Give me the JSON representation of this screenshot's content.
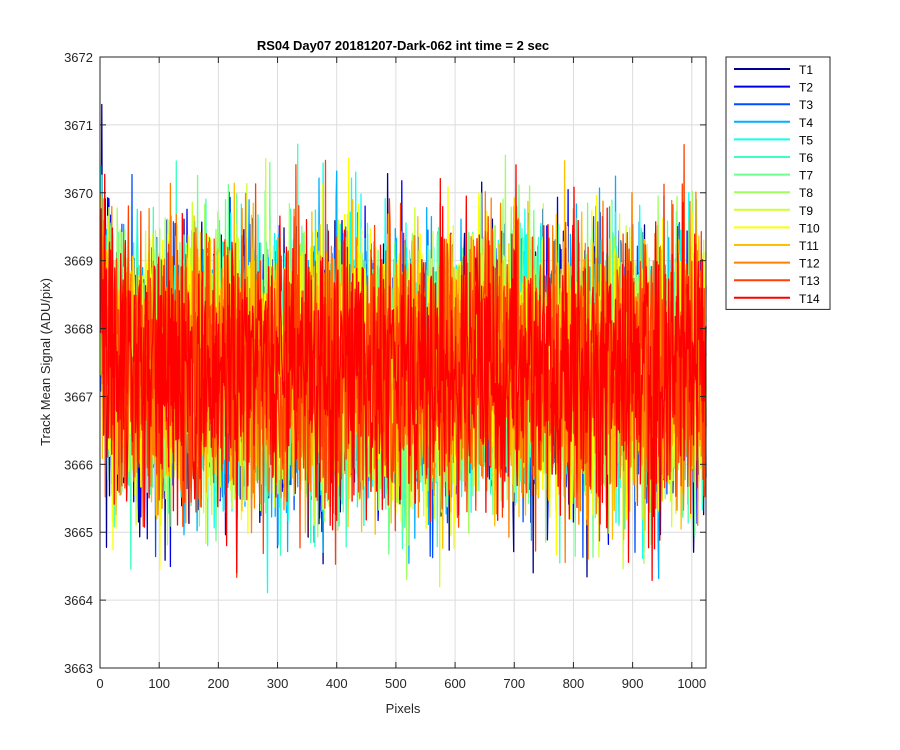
{
  "chart_data": {
    "type": "line",
    "title": "RS04 Day07 20181207-Dark-062 int time = 2 sec",
    "xlabel": "Pixels",
    "ylabel": "Track Mean Signal (ADU/pix)",
    "xlim": [
      0,
      1024
    ],
    "ylim": [
      3663,
      3672
    ],
    "xticks": [
      0,
      100,
      200,
      300,
      400,
      500,
      600,
      700,
      800,
      900,
      1000
    ],
    "yticks": [
      3663,
      3664,
      3665,
      3666,
      3667,
      3668,
      3669,
      3670,
      3671,
      3672
    ],
    "grid": true,
    "legend_position": "outside-top-right",
    "x": {
      "start": 1,
      "end": 1024,
      "step": 1
    },
    "noise_model": {
      "mean": 3667.4,
      "std": 1.0,
      "min": 3663.7,
      "max": 3671.3
    },
    "series": [
      {
        "name": "T1",
        "color": "#00008f"
      },
      {
        "name": "T2",
        "color": "#0000ef"
      },
      {
        "name": "T3",
        "color": "#004fff"
      },
      {
        "name": "T4",
        "color": "#00afff"
      },
      {
        "name": "T5",
        "color": "#0fffef"
      },
      {
        "name": "T6",
        "color": "#3fffbf"
      },
      {
        "name": "T7",
        "color": "#6fff8f"
      },
      {
        "name": "T8",
        "color": "#9fff5f"
      },
      {
        "name": "T9",
        "color": "#cfff2f"
      },
      {
        "name": "T10",
        "color": "#ffff00"
      },
      {
        "name": "T11",
        "color": "#ffbf00"
      },
      {
        "name": "T12",
        "color": "#ff8000"
      },
      {
        "name": "T13",
        "color": "#ff4000"
      },
      {
        "name": "T14",
        "color": "#ff0000"
      }
    ]
  }
}
